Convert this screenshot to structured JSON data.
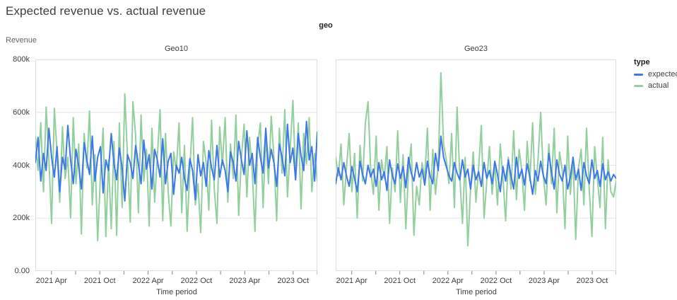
{
  "page": {
    "title": "Expected revenue vs. actual revenue"
  },
  "chart_data": {
    "type": "line",
    "title": "Expected revenue vs. actual revenue",
    "facet_field": "geo",
    "x": {
      "label": "Time period",
      "domain_months": 35,
      "domain_note": "time axis from 2021 Feb to 2023 Dec, monthly index m since domain start",
      "ticks": [
        {
          "m": 2,
          "label": "2021 Apr"
        },
        {
          "m": 5,
          "label": ""
        },
        {
          "m": 8,
          "label": "2021 Oct"
        },
        {
          "m": 11,
          "label": ""
        },
        {
          "m": 14,
          "label": "2022 Apr"
        },
        {
          "m": 17,
          "label": ""
        },
        {
          "m": 20,
          "label": "2022 Oct"
        },
        {
          "m": 23,
          "label": ""
        },
        {
          "m": 26,
          "label": "2023 Apr"
        },
        {
          "m": 29,
          "label": ""
        },
        {
          "m": 32,
          "label": "2023 Oct"
        },
        {
          "m": 35,
          "label": ""
        }
      ]
    },
    "y": {
      "label": "Revenue",
      "max": 800,
      "values_unit": "k (thousands)",
      "gridlines": [
        200,
        400,
        600
      ],
      "ticks": [
        "800k",
        "600k",
        "400k",
        "200k",
        "0.00"
      ]
    },
    "legend": {
      "title": "type",
      "position": "right",
      "entries": [
        {
          "label": "expected",
          "color": "#3c78e7"
        },
        {
          "label": "actual",
          "color": "#93cf9e"
        }
      ]
    },
    "grid": true,
    "colors": {
      "border": "#dcdee0",
      "gridline": "#e6e6e6",
      "tick_mark": "#80868b"
    },
    "facets": [
      {
        "label": "Geo10",
        "series": [
          {
            "name": "expected",
            "values": [
              410,
              505,
              340,
              445,
              380,
              540,
              430,
              355,
              470,
              300,
              430,
              385,
              550,
              420,
              330,
              460,
              395,
              310,
              485,
              420,
              365,
              510,
              340,
              430,
              470,
              295,
              420,
              380,
              520,
              405,
              345,
              465,
              390,
              265,
              440,
              410,
              350,
              475,
              405,
              330,
              495,
              385,
              440,
              310,
              460,
              420,
              355,
              500,
              330,
              415,
              445,
              290,
              400,
              370,
              430,
              350,
              305,
              425,
              380,
              270,
              440,
              360,
              410,
              320,
              455,
              390,
              345,
              475,
              355,
              420,
              380,
              300,
              450,
              410,
              340,
              490,
              420,
              365,
              530,
              400,
              445,
              330,
              505,
              430,
              370,
              540,
              390,
              460,
              410,
              320,
              480,
              430,
              360,
              555,
              410,
              465,
              345,
              520,
              435,
              380,
              565,
              420,
              470,
              340,
              525
            ]
          },
          {
            "name": "actual",
            "values": [
              510,
              380,
              560,
              300,
              620,
              420,
              180,
              615,
              450,
              260,
              545,
              350,
              430,
              200,
              580,
              330,
              480,
              140,
              520,
              390,
              605,
              250,
              440,
              115,
              360,
              540,
              130,
              420,
              160,
              490,
              135,
              560,
              240,
              670,
              430,
              185,
              640,
              510,
              220,
              590,
              340,
              460,
              170,
              540,
              260,
              430,
              610,
              190,
              520,
              300,
              170,
              450,
              380,
              560,
              220,
              475,
              150,
              390,
              580,
              250,
              330,
              145,
              490,
              410,
              230,
              570,
              310,
              180,
              545,
              400,
              580,
              260,
              480,
              350,
              590,
              210,
              430,
              555,
              280,
              505,
              380,
              150,
              470,
              560,
              240,
              515,
              330,
              585,
              430,
              190,
              540,
              370,
              610,
              280,
              460,
              645,
              350,
              560,
              235,
              520,
              405,
              580,
              300,
              445,
              340
            ]
          }
        ]
      },
      {
        "label": "Geo23",
        "series": [
          {
            "name": "expected",
            "values": [
              330,
              390,
              345,
              410,
              360,
              320,
              395,
              350,
              300,
              415,
              365,
              330,
              400,
              355,
              385,
              320,
              410,
              345,
              375,
              305,
              420,
              360,
              330,
              405,
              350,
              395,
              315,
              430,
              370,
              340,
              410,
              355,
              385,
              325,
              415,
              360,
              330,
              445,
              380,
              510,
              430,
              395,
              360,
              340,
              410,
              370,
              345,
              420,
              355,
              385,
              310,
              400,
              345,
              375,
              320,
              410,
              350,
              380,
              330,
              415,
              365,
              300,
              395,
              340,
              420,
              360,
              310,
              430,
              350,
              385,
              325,
              405,
              355,
              290,
              380,
              340,
              415,
              360,
              330,
              445,
              375,
              310,
              420,
              365,
              340,
              400,
              310,
              355,
              430,
              345,
              385,
              305,
              410,
              360,
              330,
              420,
              350,
              380,
              320,
              405,
              345,
              375,
              340,
              365,
              350
            ]
          },
          {
            "name": "actual",
            "values": [
              430,
              360,
              480,
              250,
              390,
              520,
              300,
              445,
              200,
              475,
              340,
              560,
              640,
              380,
              290,
              510,
              230,
              420,
              350,
              470,
              180,
              390,
              300,
              530,
              260,
              440,
              160,
              380,
              480,
              135,
              320,
              250,
              410,
              350,
              540,
              230,
              460,
              290,
              400,
              750,
              480,
              420,
              330,
              520,
              240,
              620,
              360,
              180,
              430,
              95,
              310,
              450,
              260,
              390,
              550,
              200,
              340,
              470,
              290,
              410,
              250,
              480,
              350,
              190,
              430,
              310,
              530,
              270,
              460,
              380,
              230,
              490,
              340,
              560,
              290,
              420,
              600,
              360,
              250,
              480,
              330,
              540,
              220,
              450,
              380,
              160,
              510,
              290,
              430,
              120,
              390,
              460,
              250,
              540,
              310,
              130,
              470,
              350,
              240,
              505,
              160,
              420,
              300,
              280,
              340
            ]
          }
        ]
      }
    ]
  }
}
